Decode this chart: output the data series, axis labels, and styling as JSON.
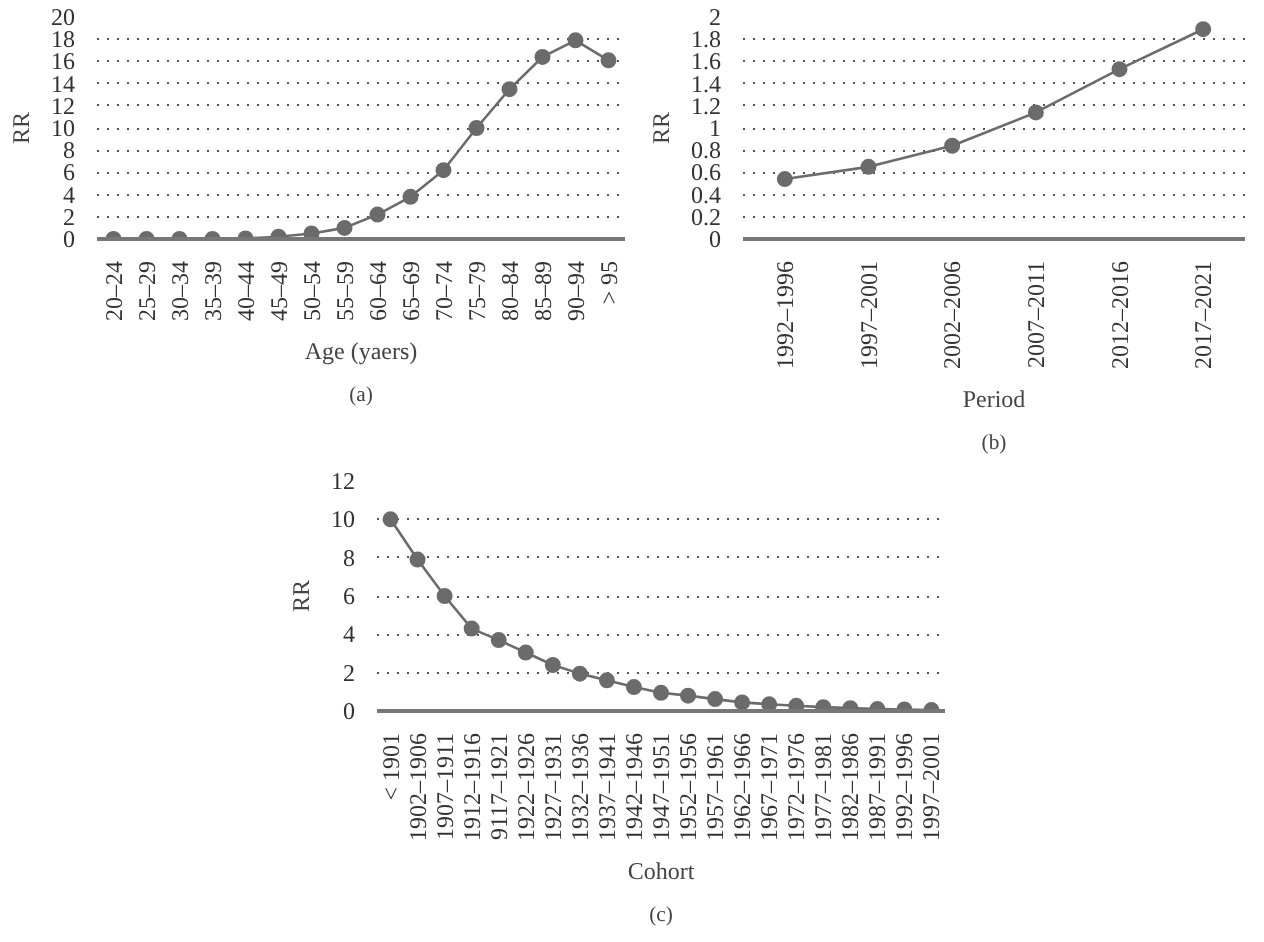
{
  "chart_data": [
    {
      "type": "line",
      "categories": [
        "20–24",
        "25–29",
        "30–34",
        "35–39",
        "40–44",
        "45–49",
        "50–54",
        "55–59",
        "60–64",
        "65–69",
        "70–74",
        "75–79",
        "80–84",
        "85–89",
        "90–94",
        "> 95"
      ],
      "values": [
        0,
        0,
        0,
        0,
        0.05,
        0.2,
        0.5,
        1.0,
        2.2,
        3.8,
        6.2,
        10,
        13.5,
        16.4,
        17.9,
        16.1
      ],
      "color": "#6b6b6b",
      "ylim": [
        0,
        20
      ],
      "yticks": [
        0,
        2,
        4,
        6,
        8,
        10,
        12,
        14,
        16,
        18,
        20
      ],
      "xlabel": "Age (yaers)",
      "ylabel": "RR",
      "grid": "y",
      "marker": "circle",
      "annotations": [
        "(a)"
      ]
    },
    {
      "type": "line",
      "categories": [
        "1992–1996",
        "1997–2001",
        "2002–2006",
        "2007–2011",
        "2012–2016",
        "2017–2021"
      ],
      "values": [
        0.54,
        0.65,
        0.84,
        1.14,
        1.53,
        1.89
      ],
      "color": "#6b6b6b",
      "ylim": [
        0,
        2
      ],
      "yticks": [
        0,
        0.2,
        0.4,
        0.6,
        0.8,
        1,
        1.2,
        1.4,
        1.6,
        1.8,
        2
      ],
      "xlabel": "Period",
      "ylabel": "RR",
      "grid": "y",
      "marker": "circle",
      "annotations": [
        "(b)"
      ]
    },
    {
      "type": "line",
      "categories": [
        "< 1901",
        "1902–1906",
        "1907–1911",
        "1912–1916",
        "9117–1921",
        "1922–1926",
        "1927–1931",
        "1932–1936",
        "1937–1941",
        "1942–1946",
        "1947–1951",
        "1952–1956",
        "1957–1961",
        "1962–1966",
        "1967–1971",
        "1972–1976",
        "1977–1981",
        "1982–1986",
        "1987–1991",
        "1992–1996",
        "1997–2001"
      ],
      "values": [
        10,
        7.9,
        6.0,
        4.3,
        3.7,
        3.05,
        2.4,
        1.95,
        1.6,
        1.25,
        0.95,
        0.8,
        0.62,
        0.45,
        0.35,
        0.27,
        0.2,
        0.15,
        0.1,
        0.08,
        0.05
      ],
      "color": "#6b6b6b",
      "ylim": [
        0,
        12
      ],
      "yticks": [
        0,
        2,
        4,
        6,
        8,
        10,
        12
      ],
      "xlabel": "Cohort",
      "ylabel": "RR",
      "grid": "y",
      "marker": "circle",
      "annotations": [
        "(c)"
      ]
    }
  ]
}
